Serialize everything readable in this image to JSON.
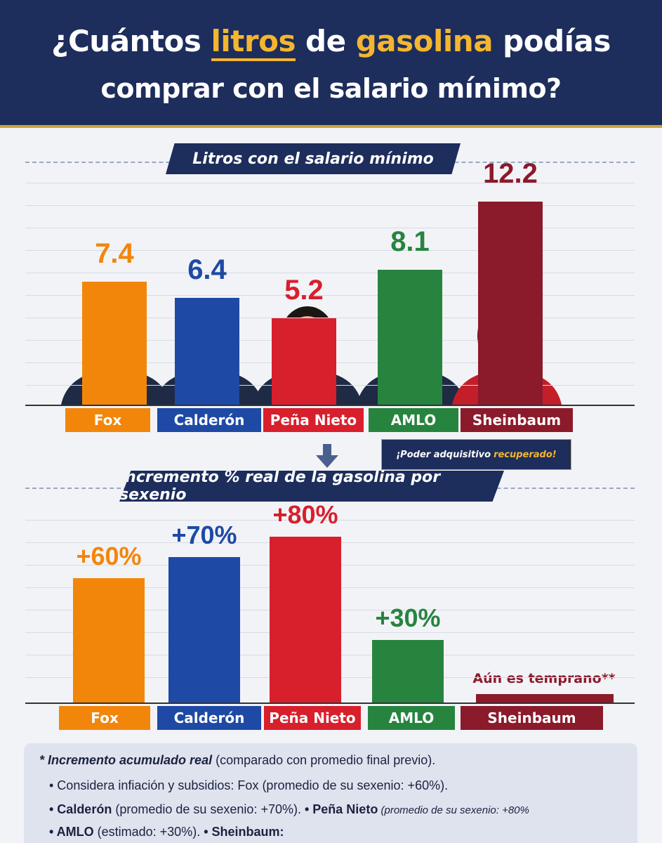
{
  "title": {
    "pre": "¿Cuántos ",
    "w1": "litros",
    "mid": " de ",
    "w2": "gasolina",
    "post": " podías",
    "line2": "comprar con el salario mínimo?"
  },
  "colors": {
    "Fox": "#f2860b",
    "Calderón": "#1e4aa5",
    "Peña Nieto": "#d81f2c",
    "AMLO": "#27843f",
    "Sheinbaum": "#8b1a2b",
    "navy": "#1d2d5c",
    "gold": "#f4b62f"
  },
  "chart_data": [
    {
      "type": "bar",
      "title": "Litros con el salario mínimo",
      "categories": [
        "Fox",
        "Calderón",
        "Peña Nieto",
        "AMLO",
        "Sheinbaum"
      ],
      "values": [
        7.4,
        6.4,
        5.2,
        8.1,
        12.2
      ],
      "value_labels": [
        "7.4",
        "6.4",
        "5.2",
        "8.1",
        "12.2"
      ],
      "ylim": [
        0,
        13.5
      ],
      "grid": true
    },
    {
      "type": "bar",
      "title": "Incremento % real de la gasolina por sexenio",
      "categories": [
        "Fox",
        "Calderón",
        "Peña Nieto",
        "AMLO",
        "Sheinbaum"
      ],
      "values": [
        60,
        70,
        80,
        30,
        null
      ],
      "value_labels": [
        "+60%",
        "+70%",
        "+80%",
        "+30%",
        ""
      ],
      "ylim": [
        0,
        84
      ],
      "grid": true
    }
  ],
  "callout": {
    "pre": "¡Poder adquisitivo",
    "highlight": "recuperado!"
  },
  "sheinbaum_note": "Aún es temprano**",
  "notes": {
    "line1_bold": "* Incremento acumulado real",
    "line1_rest": " (comparado con promedio final previo).",
    "line2": "• Considera infiación y subsidios: Fox (promedio de su sexenio: +60%).",
    "line3_b1": "• Calderón",
    "line3_r1": " (promedio de su sexenio: +70%). ",
    "line3_b2": "• Peña Nieto",
    "line3_r2": " (promedio de su sexenio: +80%",
    "line4_b1": "• AMLO",
    "line4_r1": " (estimado: +30%). ",
    "line4_b2": "• Sheinbaum:"
  }
}
